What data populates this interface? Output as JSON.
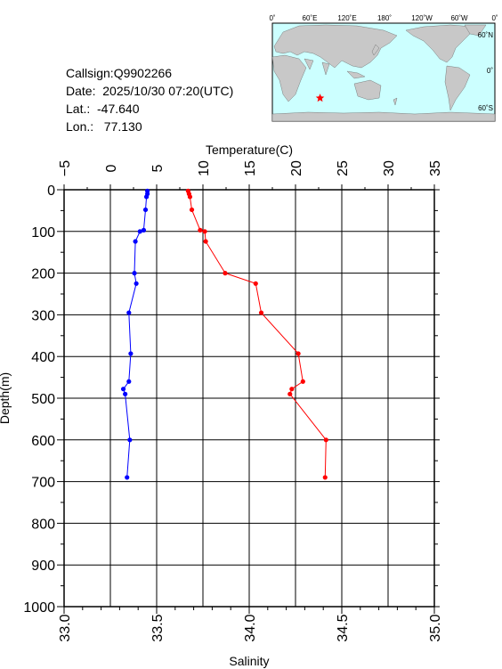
{
  "info": {
    "callsign": "Callsign:Q9902266",
    "date": "Date:  2025/10/30 07:20(UTC)",
    "lat": "Lat.:  -47.640",
    "lon": "Lon.:   77.130"
  },
  "map": {
    "top_labels": [
      "0˚",
      "60˚E",
      "120˚E",
      "180˚",
      "120˚W",
      "60˚W",
      "0˚"
    ],
    "side_labels": [
      "60˚N",
      "0˚",
      "60˚S"
    ],
    "ocean_color": "#ccffff",
    "land_color": "#c8c8c8",
    "marker_color": "#ff0000",
    "marker_lat": -47.64,
    "marker_lon": 77.13
  },
  "chart_data": {
    "type": "line",
    "ylabel": "Depth(m)",
    "ylim": [
      1000,
      0
    ],
    "yticks": [
      "0",
      "100",
      "200",
      "300",
      "400",
      "500",
      "600",
      "700",
      "800",
      "900",
      "1000"
    ],
    "top_axis": {
      "label": "Temperature(C)",
      "range": [
        -5,
        35
      ],
      "ticks": [
        "−5",
        "0",
        "5",
        "10",
        "15",
        "20",
        "25",
        "30",
        "35"
      ]
    },
    "bottom_axis": {
      "label": "Salinity",
      "range": [
        33.0,
        35.0
      ],
      "ticks": [
        "33.0",
        "33.5",
        "34.0",
        "34.5",
        "35.0"
      ]
    },
    "grid": true,
    "series": [
      {
        "axis": "top",
        "color": "#ff0000",
        "x": [
          8.4,
          8.5,
          8.6,
          8.8,
          9.7,
          10.2,
          10.3,
          12.4,
          15.7,
          16.3,
          20.3,
          20.8,
          19.6,
          19.4,
          23.3,
          23.2
        ],
        "y": [
          3,
          10,
          17,
          48,
          97,
          100,
          124,
          200,
          225,
          295,
          393,
          460,
          478,
          490,
          600,
          690
        ]
      },
      {
        "axis": "bottom",
        "color": "#0000ff",
        "x": [
          33.45,
          33.45,
          33.445,
          33.44,
          33.43,
          33.41,
          33.385,
          33.38,
          33.39,
          33.35,
          33.36,
          33.35,
          33.32,
          33.33,
          33.355,
          33.34
        ],
        "y": [
          3,
          10,
          17,
          48,
          97,
          100,
          124,
          200,
          225,
          295,
          393,
          460,
          478,
          490,
          600,
          690
        ]
      }
    ]
  }
}
